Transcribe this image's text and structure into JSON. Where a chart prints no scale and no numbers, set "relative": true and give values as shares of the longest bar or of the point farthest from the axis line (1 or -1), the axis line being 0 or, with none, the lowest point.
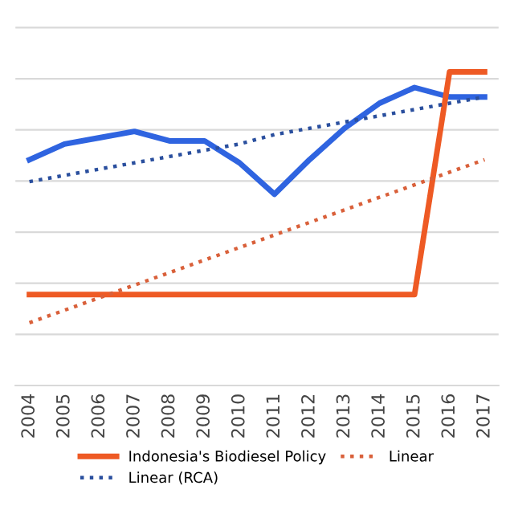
{
  "chart_data": {
    "type": "line",
    "relative": true,
    "categories": [
      "2004",
      "2005",
      "2006",
      "2007",
      "2008",
      "2009",
      "2010",
      "2011",
      "2012",
      "2013",
      "2014",
      "2015",
      "2016",
      "2017"
    ],
    "series": [
      {
        "color": "#2f64e0",
        "values": [
          0.72,
          0.77,
          0.79,
          0.81,
          0.78,
          0.78,
          0.71,
          0.61,
          0.72,
          0.82,
          0.9,
          0.95,
          0.92,
          0.92
        ]
      },
      {
        "name": "Indonesia's Biodiesel Policy",
        "color": "#ee5a24",
        "values": [
          0.29,
          0.29,
          0.29,
          0.29,
          0.29,
          0.29,
          0.29,
          0.29,
          0.29,
          0.29,
          0.29,
          0.29,
          1,
          1
        ]
      },
      {
        "name": "Linear (RCA)",
        "color": "#2a4f9e",
        "line_style": "dotted",
        "values": [
          0.65,
          0.67,
          0.69,
          0.71,
          0.73,
          0.75,
          0.77,
          0.8,
          0.82,
          0.84,
          0.86,
          0.88,
          0.9,
          0.92
        ]
      },
      {
        "name": "Linear",
        "color": "#d9603a",
        "line_style": "dotted",
        "values": [
          0.2,
          0.24,
          0.28,
          0.32,
          0.36,
          0.4,
          0.44,
          0.48,
          0.52,
          0.56,
          0.6,
          0.64,
          0.68,
          0.72
        ]
      }
    ],
    "grid": "y",
    "legend": "bottom",
    "marker": "none"
  }
}
